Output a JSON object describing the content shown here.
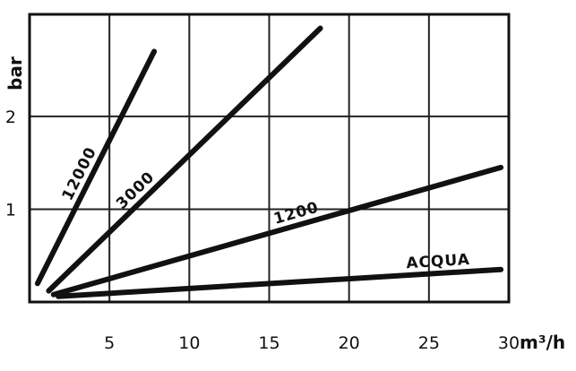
{
  "chart_data": {
    "type": "line",
    "xlabel": "m³/h",
    "ylabel": "bar",
    "xlim": [
      0,
      30
    ],
    "ylim": [
      0,
      3.1
    ],
    "xticks": [
      5,
      10,
      15,
      20,
      25,
      30
    ],
    "yticks": [
      1,
      2
    ],
    "grid": true,
    "series": [
      {
        "name": "12000",
        "x": [
          0.5,
          7.8
        ],
        "y": [
          0.2,
          2.7
        ]
      },
      {
        "name": "3000",
        "x": [
          1.2,
          18.2
        ],
        "y": [
          0.12,
          2.95
        ]
      },
      {
        "name": "1200",
        "x": [
          1.5,
          29.5
        ],
        "y": [
          0.08,
          1.45
        ]
      },
      {
        "name": "ACQUA",
        "x": [
          1.8,
          29.5
        ],
        "y": [
          0.06,
          0.35
        ]
      }
    ]
  }
}
